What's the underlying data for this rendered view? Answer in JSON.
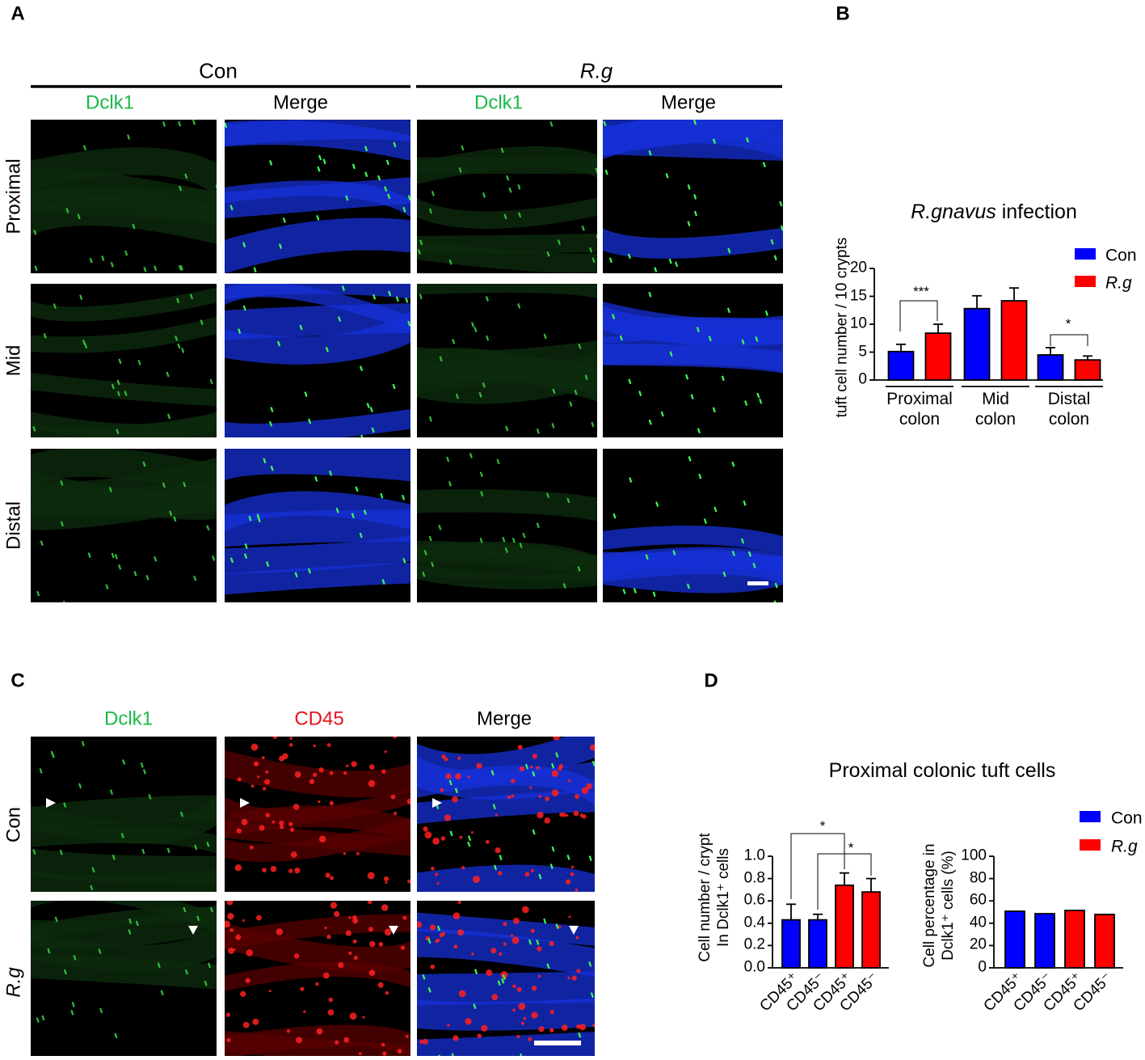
{
  "panel_labels": [
    "A",
    "B",
    "C",
    "D"
  ],
  "panel_a": {
    "groups": [
      "Con",
      "R.g"
    ],
    "columns": [
      "Dclk1",
      "Merge",
      "Dclk1",
      "Merge"
    ],
    "rows": [
      "Proximal",
      "Mid",
      "Distal"
    ]
  },
  "panel_c": {
    "columns": [
      "Dclk1",
      "CD45",
      "Merge"
    ],
    "rows": [
      "Con",
      "R.g"
    ]
  },
  "panel_d_title": "Proximal colonic tuft cells",
  "chart_data": [
    {
      "type": "bar",
      "title": "R.gnavus infection",
      "ylabel": "tuft cell number / 10 crypts",
      "categories": [
        "Proximal\ncolon",
        "Mid\ncolon",
        "Distal\ncolon"
      ],
      "series": [
        {
          "name": "Con",
          "color": "#0000ff",
          "values": [
            5.1,
            12.8,
            4.5
          ],
          "errors": [
            1.3,
            2.3,
            1.3
          ]
        },
        {
          "name": "R.g",
          "color": "#ff0000",
          "values": [
            8.4,
            14.2,
            3.6
          ],
          "errors": [
            1.6,
            2.3,
            0.7
          ]
        }
      ],
      "ylim": [
        0,
        20
      ],
      "yticks": [
        0,
        5,
        10,
        15,
        20
      ],
      "annotations": [
        "***",
        "*"
      ]
    },
    {
      "type": "bar",
      "ylabel": "Cell number / crypt\nIn Dclk1⁺ cells",
      "categories": [
        "CD45⁺",
        "CD45⁻",
        "CD45⁺",
        "CD45⁻"
      ],
      "values": [
        0.43,
        0.43,
        0.74,
        0.68
      ],
      "errors": [
        0.14,
        0.05,
        0.11,
        0.12
      ],
      "colors": [
        "#0000ff",
        "#0000ff",
        "#ff0000",
        "#ff0000"
      ],
      "ylim": [
        0,
        1.0
      ],
      "yticks": [
        {
          "value": 0,
          "label": "0.0"
        },
        {
          "value": 0.2,
          "label": "0.2"
        },
        {
          "value": 0.4,
          "label": "0.4"
        },
        {
          "value": 0.6,
          "label": "0.6"
        },
        {
          "value": 0.8,
          "label": "0.8"
        },
        {
          "value": 1.0,
          "label": "1.0"
        }
      ],
      "annotations": [
        "*",
        "*"
      ]
    },
    {
      "type": "bar",
      "ylabel": "Cell percentage in\nDclk1⁺ cells (%)",
      "categories": [
        "CD45⁺",
        "CD45⁻",
        "CD45⁺",
        "CD45⁻"
      ],
      "values": [
        50.7,
        48.5,
        51.4,
        47.8
      ],
      "colors": [
        "#0000ff",
        "#0000ff",
        "#ff0000",
        "#ff0000"
      ],
      "ylim": [
        0,
        100
      ],
      "yticks": [
        0,
        20,
        40,
        60,
        80,
        100
      ],
      "legend_entries": [
        {
          "name": "Con",
          "color": "#0000ff"
        },
        {
          "name": "R.g",
          "color": "#ff0000"
        }
      ]
    }
  ]
}
